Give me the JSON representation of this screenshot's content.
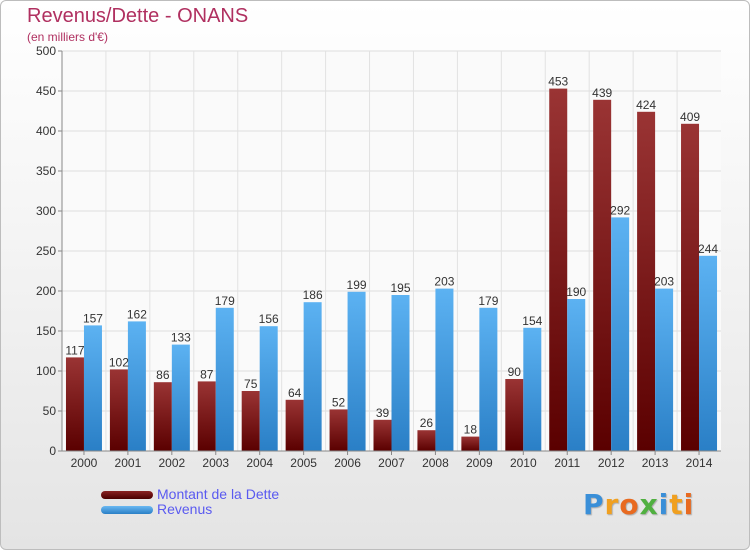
{
  "header": {
    "title": "Revenus/Dette - ONANS",
    "subtitle": "(en milliers d'€)"
  },
  "chart_data": {
    "type": "bar",
    "categories": [
      "2000",
      "2001",
      "2002",
      "2003",
      "2004",
      "2005",
      "2006",
      "2007",
      "2008",
      "2009",
      "2010",
      "2011",
      "2012",
      "2013",
      "2014"
    ],
    "series": [
      {
        "name": "Montant de la Dette",
        "color": "#7a1616",
        "values": [
          117,
          102,
          86,
          87,
          75,
          64,
          52,
          39,
          26,
          18,
          90,
          453,
          439,
          424,
          409
        ]
      },
      {
        "name": "Revenus",
        "color": "#3d9be0",
        "values": [
          157,
          162,
          133,
          179,
          156,
          186,
          199,
          195,
          203,
          179,
          154,
          190,
          292,
          203,
          244
        ]
      }
    ],
    "ylim": [
      0,
      500
    ],
    "yticks": [
      0,
      50,
      100,
      150,
      200,
      250,
      300,
      350,
      400,
      450,
      500
    ],
    "grid": true,
    "legend": "bottom-left"
  },
  "legend": {
    "items": [
      {
        "label": "Montant de la Dette",
        "color": "#6b0f0f"
      },
      {
        "label": "Revenus",
        "color": "#3d9be0"
      }
    ]
  },
  "logo": {
    "letters": [
      {
        "ch": "P",
        "color": "#3a8fd8"
      },
      {
        "ch": "r",
        "color": "#f0a020"
      },
      {
        "ch": "o",
        "color": "#e86a20"
      },
      {
        "ch": "x",
        "color": "#50b040"
      },
      {
        "ch": "i",
        "color": "#3a8fd8"
      },
      {
        "ch": "t",
        "color": "#f0a020"
      },
      {
        "ch": "i",
        "color": "#e86a20"
      }
    ]
  }
}
